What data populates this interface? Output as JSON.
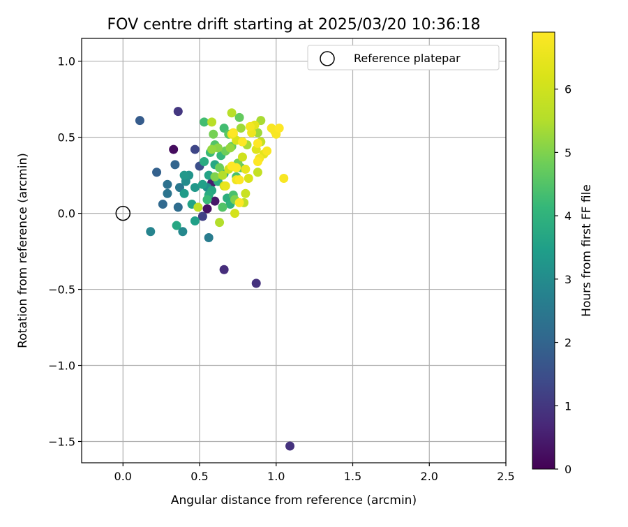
{
  "chart_data": {
    "type": "scatter",
    "title": "FOV centre drift starting at 2025/03/20 10:36:18",
    "xlabel": "Angular distance from reference (arcmin)",
    "ylabel": "Rotation from reference (arcmin)",
    "xlim": [
      -0.27,
      2.5
    ],
    "ylim": [
      -1.64,
      1.15
    ],
    "xticks": [
      0.0,
      0.5,
      1.0,
      1.5,
      2.0,
      2.5
    ],
    "xtick_labels": [
      "0.0",
      "0.5",
      "1.0",
      "1.5",
      "2.0",
      "2.5"
    ],
    "yticks": [
      1.0,
      0.5,
      0.0,
      -0.5,
      -1.0,
      -1.5
    ],
    "ytick_labels": [
      "1.0",
      "0.5",
      "0.0",
      "−0.5",
      "−1.0",
      "−1.5"
    ],
    "grid": true,
    "legend": {
      "position": "top-right",
      "entries": [
        {
          "label": "Reference platepar",
          "marker": "open-circle",
          "x": 0.0,
          "y": 0.0
        }
      ]
    },
    "colorbar": {
      "label": "Hours from first FF file",
      "colormap": "viridis",
      "range": [
        0,
        6.9
      ],
      "ticks": [
        0,
        1,
        2,
        3,
        4,
        5,
        6
      ],
      "tick_labels": [
        "0",
        "1",
        "2",
        "3",
        "4",
        "5",
        "6"
      ]
    },
    "points": [
      [
        0.33,
        0.42,
        0.2
      ],
      [
        0.55,
        0.03,
        0.3
      ],
      [
        0.6,
        0.08,
        0.4
      ],
      [
        0.58,
        0.2,
        0.5
      ],
      [
        0.66,
        -0.37,
        0.8
      ],
      [
        0.87,
        -0.46,
        0.9
      ],
      [
        1.09,
        -1.53,
        0.9
      ],
      [
        0.36,
        0.67,
        1.0
      ],
      [
        0.52,
        -0.02,
        1.2
      ],
      [
        0.47,
        0.42,
        1.3
      ],
      [
        0.5,
        0.31,
        1.5
      ],
      [
        0.11,
        0.61,
        1.8
      ],
      [
        0.22,
        0.27,
        1.9
      ],
      [
        0.34,
        0.32,
        2.0
      ],
      [
        0.26,
        0.06,
        2.1
      ],
      [
        0.36,
        0.04,
        2.2
      ],
      [
        0.29,
        0.19,
        2.3
      ],
      [
        0.29,
        0.13,
        2.4
      ],
      [
        0.37,
        0.17,
        2.5
      ],
      [
        0.56,
        -0.16,
        2.6
      ],
      [
        0.18,
        -0.12,
        2.8
      ],
      [
        0.39,
        -0.12,
        2.9
      ],
      [
        0.41,
        0.21,
        3.0
      ],
      [
        0.55,
        0.17,
        3.1
      ],
      [
        0.43,
        0.25,
        3.2
      ],
      [
        0.4,
        0.25,
        3.3
      ],
      [
        0.47,
        0.17,
        3.3
      ],
      [
        0.47,
        -0.05,
        3.5
      ],
      [
        0.45,
        0.06,
        3.6
      ],
      [
        0.35,
        -0.08,
        3.7
      ],
      [
        0.4,
        0.13,
        3.4
      ],
      [
        0.52,
        0.19,
        3.5
      ],
      [
        0.56,
        0.25,
        3.6
      ],
      [
        0.58,
        0.15,
        3.7
      ],
      [
        0.6,
        0.32,
        3.7
      ],
      [
        0.53,
        0.34,
        3.8
      ],
      [
        0.56,
        0.12,
        3.8
      ],
      [
        0.62,
        0.21,
        3.9
      ],
      [
        0.68,
        0.1,
        3.9
      ],
      [
        0.66,
        0.26,
        4.0
      ],
      [
        0.7,
        0.06,
        4.0
      ],
      [
        0.64,
        0.38,
        4.1
      ],
      [
        0.57,
        0.4,
        4.2
      ],
      [
        0.55,
        0.09,
        4.2
      ],
      [
        0.53,
        0.6,
        4.3
      ],
      [
        0.66,
        0.56,
        4.3
      ],
      [
        0.74,
        0.24,
        4.4
      ],
      [
        0.72,
        0.12,
        4.4
      ],
      [
        0.6,
        0.45,
        4.5
      ],
      [
        0.65,
        0.04,
        4.5
      ],
      [
        0.77,
        0.3,
        4.6
      ],
      [
        0.69,
        0.52,
        4.6
      ],
      [
        0.76,
        0.63,
        4.7
      ],
      [
        0.71,
        0.44,
        4.7
      ],
      [
        0.63,
        0.3,
        4.8
      ],
      [
        0.67,
        0.41,
        4.8
      ],
      [
        0.59,
        0.52,
        4.9
      ],
      [
        0.75,
        0.33,
        4.9
      ],
      [
        0.6,
        0.24,
        5.0
      ],
      [
        0.73,
        0.09,
        5.0
      ],
      [
        0.62,
        0.43,
        5.1
      ],
      [
        0.78,
        0.47,
        5.1
      ],
      [
        0.58,
        0.42,
        5.2
      ],
      [
        0.7,
        0.43,
        5.2
      ],
      [
        0.77,
        0.56,
        5.3
      ],
      [
        0.88,
        0.53,
        5.3
      ],
      [
        0.81,
        0.45,
        5.4
      ],
      [
        0.9,
        0.61,
        5.4
      ],
      [
        0.65,
        0.25,
        5.5
      ],
      [
        0.63,
        -0.06,
        5.5
      ],
      [
        0.71,
        0.66,
        5.6
      ],
      [
        0.58,
        0.6,
        5.6
      ],
      [
        0.49,
        0.04,
        5.7
      ],
      [
        0.79,
        0.07,
        5.7
      ],
      [
        0.9,
        0.47,
        5.8
      ],
      [
        0.88,
        0.27,
        5.8
      ],
      [
        0.8,
        0.13,
        5.9
      ],
      [
        0.72,
        0.52,
        5.9
      ],
      [
        0.69,
        0.29,
        6.0
      ],
      [
        0.78,
        0.37,
        6.0
      ],
      [
        0.66,
        0.18,
        6.1
      ],
      [
        0.73,
        0.0,
        6.1
      ],
      [
        0.74,
        0.48,
        6.2
      ],
      [
        0.82,
        0.23,
        6.2
      ],
      [
        0.87,
        0.42,
        6.3
      ],
      [
        0.86,
        0.58,
        6.4
      ],
      [
        0.92,
        0.39,
        6.4
      ],
      [
        0.8,
        0.29,
        6.5
      ],
      [
        0.67,
        0.18,
        6.5
      ],
      [
        0.71,
        0.52,
        6.6
      ],
      [
        0.74,
        0.22,
        6.6
      ],
      [
        0.84,
        0.53,
        6.6
      ],
      [
        0.83,
        0.57,
        6.7
      ],
      [
        0.89,
        0.36,
        6.7
      ],
      [
        0.99,
        0.54,
        6.7
      ],
      [
        0.94,
        0.41,
        6.8
      ],
      [
        1.0,
        0.52,
        6.8
      ],
      [
        1.05,
        0.23,
        6.8
      ],
      [
        0.97,
        0.56,
        6.8
      ],
      [
        1.02,
        0.56,
        6.9
      ],
      [
        0.88,
        0.46,
        6.9
      ],
      [
        0.76,
        0.07,
        6.9
      ],
      [
        0.71,
        0.31,
        6.9
      ],
      [
        0.74,
        0.3,
        6.9
      ],
      [
        0.76,
        0.22,
        6.9
      ],
      [
        0.88,
        0.34,
        6.9
      ],
      [
        0.72,
        0.53,
        6.9
      ],
      [
        0.78,
        0.47,
        6.9
      ]
    ]
  }
}
